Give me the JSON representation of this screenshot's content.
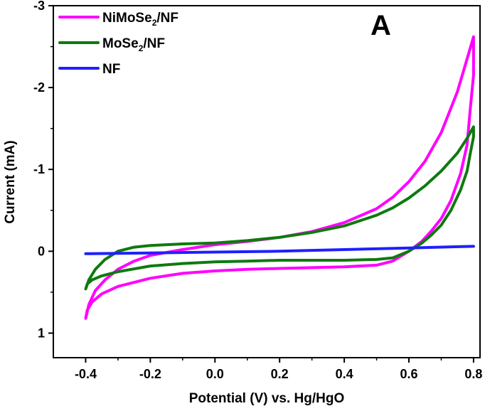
{
  "chart_data": {
    "type": "line",
    "panel_label": "A",
    "xlabel": "Potential (V) vs. Hg/HgO",
    "ylabel": "Current (mA)",
    "xlim": [
      -0.5,
      0.82
    ],
    "ylim": [
      1.3,
      -3.0
    ],
    "y_inverted": true,
    "x_ticks": [
      -0.4,
      -0.2,
      0.0,
      0.2,
      0.4,
      0.6,
      0.8
    ],
    "x_tick_labels": [
      "-0.4",
      "-0.2",
      "0.0",
      "0.2",
      "0.4",
      "0.6",
      "0.8"
    ],
    "y_ticks": [
      -3,
      -2,
      -1,
      0,
      1
    ],
    "y_tick_labels": [
      "-3",
      "-2",
      "-1",
      "0",
      "1"
    ],
    "legend": {
      "position": "top-left"
    },
    "series": [
      {
        "name": "NiMoSe2/NF",
        "legend_main": "NiMoSe",
        "legend_sub": "2",
        "legend_tail": "/NF",
        "color": "#ff00ff",
        "x": [
          -0.4,
          -0.39,
          -0.37,
          -0.34,
          -0.3,
          -0.25,
          -0.2,
          -0.1,
          0.0,
          0.1,
          0.2,
          0.3,
          0.4,
          0.5,
          0.55,
          0.6,
          0.65,
          0.7,
          0.75,
          0.78,
          0.8,
          0.8,
          0.79,
          0.78,
          0.76,
          0.73,
          0.7,
          0.67,
          0.64,
          0.6,
          0.55,
          0.5,
          0.4,
          0.3,
          0.2,
          0.1,
          0.0,
          -0.1,
          -0.2,
          -0.3,
          -0.35,
          -0.38,
          -0.395,
          -0.4
        ],
        "y": [
          0.82,
          0.65,
          0.48,
          0.35,
          0.22,
          0.12,
          0.05,
          -0.02,
          -0.08,
          -0.12,
          -0.17,
          -0.24,
          -0.35,
          -0.52,
          -0.66,
          -0.85,
          -1.1,
          -1.45,
          -1.95,
          -2.35,
          -2.62,
          -2.15,
          -1.75,
          -1.3,
          -0.95,
          -0.62,
          -0.4,
          -0.25,
          -0.12,
          0.0,
          0.12,
          0.17,
          0.19,
          0.2,
          0.21,
          0.22,
          0.24,
          0.27,
          0.33,
          0.43,
          0.52,
          0.62,
          0.72,
          0.82
        ]
      },
      {
        "name": "MoSe2/NF",
        "legend_main": "MoSe",
        "legend_sub": "2",
        "legend_tail": "/NF",
        "color": "#0e7a0e",
        "x": [
          -0.4,
          -0.39,
          -0.37,
          -0.34,
          -0.3,
          -0.25,
          -0.2,
          -0.1,
          0.0,
          0.1,
          0.2,
          0.3,
          0.4,
          0.5,
          0.55,
          0.6,
          0.65,
          0.7,
          0.75,
          0.78,
          0.8,
          0.8,
          0.79,
          0.78,
          0.76,
          0.73,
          0.7,
          0.67,
          0.64,
          0.6,
          0.55,
          0.5,
          0.4,
          0.3,
          0.2,
          0.1,
          0.0,
          -0.1,
          -0.2,
          -0.3,
          -0.35,
          -0.38,
          -0.395,
          -0.4
        ],
        "y": [
          0.46,
          0.35,
          0.22,
          0.1,
          0.0,
          -0.05,
          -0.07,
          -0.09,
          -0.1,
          -0.13,
          -0.17,
          -0.23,
          -0.31,
          -0.44,
          -0.53,
          -0.65,
          -0.8,
          -0.98,
          -1.2,
          -1.38,
          -1.52,
          -1.4,
          -1.2,
          -0.98,
          -0.75,
          -0.5,
          -0.32,
          -0.2,
          -0.1,
          0.0,
          0.08,
          0.1,
          0.11,
          0.11,
          0.11,
          0.12,
          0.13,
          0.15,
          0.18,
          0.25,
          0.3,
          0.35,
          0.4,
          0.46
        ]
      },
      {
        "name": "NF",
        "legend_main": "NF",
        "legend_sub": "",
        "legend_tail": "",
        "color": "#1f1fff",
        "x": [
          -0.4,
          -0.2,
          0.0,
          0.2,
          0.4,
          0.6,
          0.8
        ],
        "y": [
          0.03,
          0.02,
          0.01,
          0.0,
          -0.02,
          -0.04,
          -0.06
        ]
      }
    ]
  }
}
